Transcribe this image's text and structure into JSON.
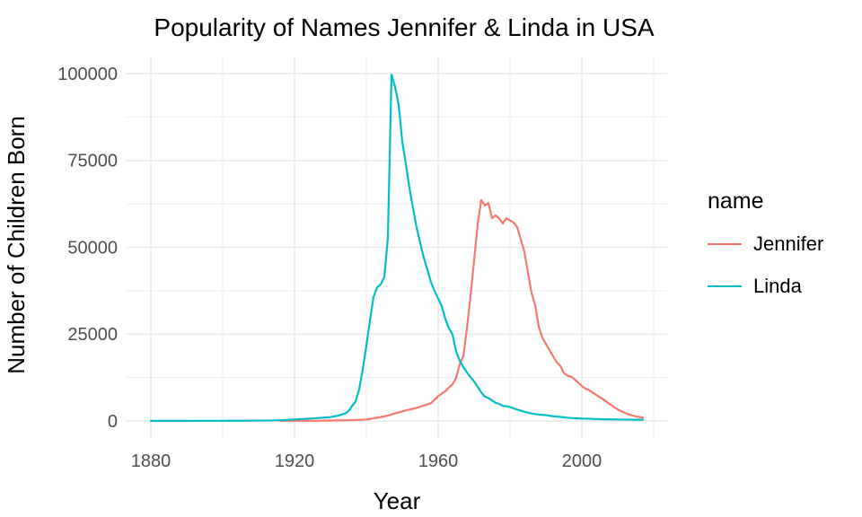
{
  "title": "Popularity of Names Jennifer & Linda in USA",
  "legend": {
    "title": "name"
  },
  "colors": {
    "jennifer": "#F8766D",
    "linda": "#00BFC4",
    "grid": "#EBEBEB",
    "tick_text": "#4D4D4D",
    "title_text": "#000000",
    "background": "#FFFFFF"
  },
  "chart_data": {
    "type": "line",
    "title": "Popularity of Names Jennifer & Linda in USA",
    "xlabel": "Year",
    "ylabel": "Number of Children Born",
    "legend_title": "name",
    "legend_position": "right",
    "grid": "major+minor",
    "xlim": [
      1873.25,
      2023.75
    ],
    "ylim": [
      -4910,
      104651
    ],
    "x_ticks": [
      1880,
      1920,
      1960,
      2000
    ],
    "x_minor": [
      1900,
      1940,
      1980,
      2020
    ],
    "y_ticks": [
      0,
      25000,
      50000,
      75000,
      100000
    ],
    "y_minor": [
      12500,
      37500,
      62500,
      87500
    ],
    "series": [
      {
        "name": "Jennifer",
        "color": "#F8766D",
        "points": [
          [
            1916,
            20
          ],
          [
            1920,
            40
          ],
          [
            1925,
            60
          ],
          [
            1930,
            120
          ],
          [
            1934,
            190
          ],
          [
            1938,
            310
          ],
          [
            1940,
            390
          ],
          [
            1942,
            760
          ],
          [
            1944,
            1100
          ],
          [
            1946,
            1550
          ],
          [
            1948,
            2170
          ],
          [
            1950,
            2770
          ],
          [
            1952,
            3270
          ],
          [
            1954,
            3780
          ],
          [
            1956,
            4450
          ],
          [
            1958,
            5110
          ],
          [
            1960,
            7120
          ],
          [
            1962,
            8580
          ],
          [
            1963,
            9630
          ],
          [
            1964,
            10570
          ],
          [
            1965,
            12450
          ],
          [
            1966,
            16390
          ],
          [
            1967,
            18650
          ],
          [
            1968,
            26500
          ],
          [
            1969,
            36000
          ],
          [
            1970,
            46200
          ],
          [
            1971,
            56800
          ],
          [
            1972,
            63610
          ],
          [
            1973,
            62050
          ],
          [
            1974,
            62700
          ],
          [
            1975,
            58410
          ],
          [
            1976,
            59210
          ],
          [
            1977,
            58270
          ],
          [
            1978,
            56880
          ],
          [
            1979,
            58350
          ],
          [
            1980,
            57730
          ],
          [
            1981,
            57120
          ],
          [
            1982,
            55780
          ],
          [
            1983,
            52280
          ],
          [
            1984,
            48700
          ],
          [
            1985,
            42660
          ],
          [
            1986,
            36820
          ],
          [
            1987,
            33360
          ],
          [
            1988,
            27160
          ],
          [
            1989,
            24000
          ],
          [
            1990,
            22150
          ],
          [
            1991,
            20400
          ],
          [
            1992,
            18600
          ],
          [
            1993,
            16900
          ],
          [
            1994,
            15900
          ],
          [
            1995,
            13800
          ],
          [
            1996,
            13050
          ],
          [
            1997,
            12800
          ],
          [
            1998,
            12000
          ],
          [
            1999,
            11050
          ],
          [
            2000,
            10050
          ],
          [
            2001,
            9300
          ],
          [
            2002,
            8840
          ],
          [
            2003,
            8200
          ],
          [
            2004,
            7500
          ],
          [
            2005,
            6820
          ],
          [
            2006,
            6200
          ],
          [
            2007,
            5430
          ],
          [
            2008,
            4700
          ],
          [
            2009,
            3940
          ],
          [
            2010,
            3300
          ],
          [
            2011,
            2820
          ],
          [
            2012,
            2330
          ],
          [
            2013,
            1910
          ],
          [
            2014,
            1600
          ],
          [
            2015,
            1320
          ],
          [
            2016,
            1130
          ],
          [
            2017,
            980
          ]
        ]
      },
      {
        "name": "Linda",
        "color": "#00BFC4",
        "points": [
          [
            1880,
            27
          ],
          [
            1890,
            38
          ],
          [
            1900,
            45
          ],
          [
            1910,
            97
          ],
          [
            1915,
            180
          ],
          [
            1920,
            450
          ],
          [
            1925,
            720
          ],
          [
            1930,
            1110
          ],
          [
            1932,
            1490
          ],
          [
            1934,
            2120
          ],
          [
            1935,
            2800
          ],
          [
            1936,
            4240
          ],
          [
            1937,
            5600
          ],
          [
            1938,
            9060
          ],
          [
            1939,
            14940
          ],
          [
            1940,
            21670
          ],
          [
            1941,
            28860
          ],
          [
            1942,
            35680
          ],
          [
            1943,
            38470
          ],
          [
            1944,
            39320
          ],
          [
            1945,
            41450
          ],
          [
            1946,
            52830
          ],
          [
            1947,
            99690
          ],
          [
            1948,
            96210
          ],
          [
            1949,
            91020
          ],
          [
            1950,
            80440
          ],
          [
            1951,
            73980
          ],
          [
            1952,
            67090
          ],
          [
            1953,
            61270
          ],
          [
            1954,
            55660
          ],
          [
            1955,
            51270
          ],
          [
            1956,
            46950
          ],
          [
            1957,
            43550
          ],
          [
            1958,
            39940
          ],
          [
            1959,
            37370
          ],
          [
            1960,
            35270
          ],
          [
            1961,
            32990
          ],
          [
            1962,
            29390
          ],
          [
            1963,
            26670
          ],
          [
            1964,
            24870
          ],
          [
            1965,
            19980
          ],
          [
            1966,
            17340
          ],
          [
            1967,
            15510
          ],
          [
            1968,
            13980
          ],
          [
            1969,
            12600
          ],
          [
            1970,
            11390
          ],
          [
            1971,
            9800
          ],
          [
            1972,
            8220
          ],
          [
            1973,
            7020
          ],
          [
            1974,
            6560
          ],
          [
            1975,
            5900
          ],
          [
            1976,
            5230
          ],
          [
            1977,
            4920
          ],
          [
            1978,
            4340
          ],
          [
            1979,
            4230
          ],
          [
            1980,
            3980
          ],
          [
            1982,
            3270
          ],
          [
            1984,
            2660
          ],
          [
            1986,
            2140
          ],
          [
            1988,
            1840
          ],
          [
            1990,
            1670
          ],
          [
            1992,
            1340
          ],
          [
            1994,
            1150
          ],
          [
            1996,
            930
          ],
          [
            1998,
            770
          ],
          [
            2000,
            710
          ],
          [
            2003,
            600
          ],
          [
            2006,
            500
          ],
          [
            2009,
            430
          ],
          [
            2012,
            390
          ],
          [
            2015,
            350
          ],
          [
            2017,
            360
          ]
        ]
      }
    ]
  }
}
